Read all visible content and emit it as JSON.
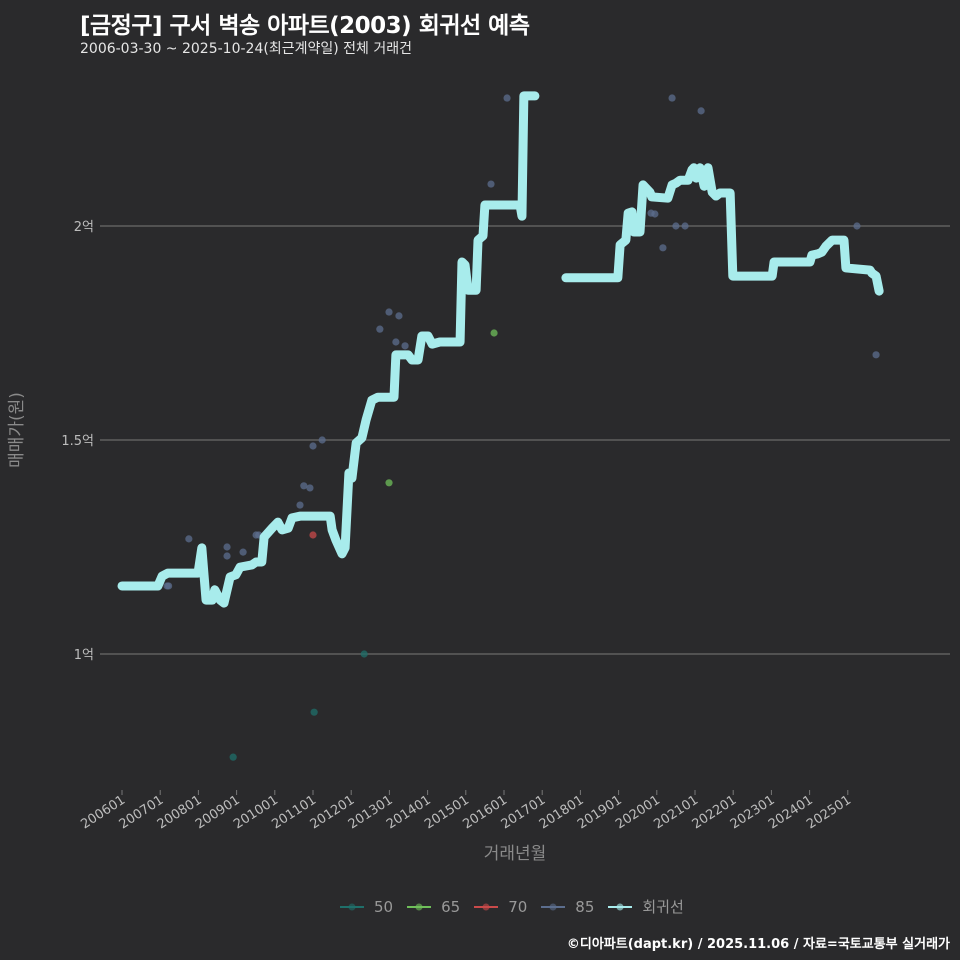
{
  "title": "[금정구] 구서 벽송 아파트(2003) 회귀선 예측",
  "subtitle": "2006-03-30 ~ 2025-10-24(최근계약일) 전체 거래건",
  "footer": "©디아파트(dapt.kr) / 2025.11.06 / 자료=국토교통부 실거래가",
  "chart_data": {
    "type": "line",
    "xlabel": "거래년월",
    "ylabel": "매매가(원)",
    "xlim": [
      2005.4,
      2026.9
    ],
    "ylim": [
      0.68,
      2.36
    ],
    "grid": "horizontal",
    "legend_position": "bottom",
    "y_ticks": [
      {
        "value": 1.0,
        "label": "1억"
      },
      {
        "value": 1.5,
        "label": "1.5억"
      },
      {
        "value": 2.0,
        "label": "2억"
      }
    ],
    "x_ticks": [
      {
        "value": 2006,
        "label": "200601"
      },
      {
        "value": 2007,
        "label": "200701"
      },
      {
        "value": 2008,
        "label": "200801"
      },
      {
        "value": 2009,
        "label": "200901"
      },
      {
        "value": 2010,
        "label": "201001"
      },
      {
        "value": 2011,
        "label": "201101"
      },
      {
        "value": 2012,
        "label": "201201"
      },
      {
        "value": 2013,
        "label": "201301"
      },
      {
        "value": 2014,
        "label": "201401"
      },
      {
        "value": 2015,
        "label": "201501"
      },
      {
        "value": 2016,
        "label": "201601"
      },
      {
        "value": 2017,
        "label": "201701"
      },
      {
        "value": 2018,
        "label": "201801"
      },
      {
        "value": 2019,
        "label": "201901"
      },
      {
        "value": 2020,
        "label": "202001"
      },
      {
        "value": 2021,
        "label": "202101"
      },
      {
        "value": 2022,
        "label": "202201"
      },
      {
        "value": 2023,
        "label": "202301"
      },
      {
        "value": 2024,
        "label": "202401"
      },
      {
        "value": 2025,
        "label": "202501"
      }
    ],
    "legend": [
      {
        "name": "50",
        "color": "#1f6f6a"
      },
      {
        "name": "65",
        "color": "#6fbf5a"
      },
      {
        "name": "70",
        "color": "#c94a4a"
      },
      {
        "name": "85",
        "color": "#5c6e8e"
      },
      {
        "name": "회귀선",
        "color": "#a8ecec"
      }
    ],
    "regression": [
      [
        [
          2006.0,
          1.159
        ],
        [
          2006.94,
          1.159
        ],
        [
          2007.05,
          1.182
        ],
        [
          2007.2,
          1.189
        ],
        [
          2007.99,
          1.189
        ],
        [
          2008.09,
          1.248
        ],
        [
          2008.2,
          1.126
        ],
        [
          2008.36,
          1.126
        ],
        [
          2008.43,
          1.15
        ],
        [
          2008.57,
          1.126
        ],
        [
          2008.67,
          1.119
        ],
        [
          2008.83,
          1.18
        ],
        [
          2008.98,
          1.185
        ],
        [
          2009.09,
          1.203
        ],
        [
          2009.4,
          1.208
        ],
        [
          2009.51,
          1.215
        ],
        [
          2009.66,
          1.215
        ],
        [
          2009.72,
          1.273
        ],
        [
          2009.93,
          1.294
        ],
        [
          2010.08,
          1.308
        ],
        [
          2010.19,
          1.29
        ],
        [
          2010.35,
          1.294
        ],
        [
          2010.45,
          1.318
        ],
        [
          2010.66,
          1.322
        ],
        [
          2011.45,
          1.322
        ],
        [
          2011.5,
          1.29
        ],
        [
          2011.6,
          1.266
        ],
        [
          2011.76,
          1.234
        ],
        [
          2011.84,
          1.248
        ],
        [
          2011.94,
          1.423
        ],
        [
          2012.02,
          1.411
        ],
        [
          2012.13,
          1.493
        ],
        [
          2012.28,
          1.505
        ],
        [
          2012.39,
          1.547
        ],
        [
          2012.54,
          1.593
        ],
        [
          2012.7,
          1.6
        ],
        [
          2013.12,
          1.6
        ],
        [
          2013.17,
          1.699
        ],
        [
          2013.49,
          1.699
        ],
        [
          2013.59,
          1.687
        ],
        [
          2013.75,
          1.687
        ],
        [
          2013.85,
          1.743
        ],
        [
          2014.01,
          1.743
        ],
        [
          2014.12,
          1.724
        ],
        [
          2014.32,
          1.729
        ],
        [
          2014.85,
          1.729
        ],
        [
          2014.9,
          1.916
        ],
        [
          2014.98,
          1.909
        ],
        [
          2015.06,
          1.85
        ],
        [
          2015.27,
          1.85
        ],
        [
          2015.32,
          1.967
        ],
        [
          2015.45,
          1.977
        ],
        [
          2015.5,
          2.049
        ],
        [
          2016.42,
          2.049
        ],
        [
          2016.47,
          2.023
        ],
        [
          2016.52,
          2.304
        ],
        [
          2016.81,
          2.304
        ]
      ],
      [
        [
          2017.62,
          1.879
        ],
        [
          2018.98,
          1.879
        ],
        [
          2019.04,
          1.956
        ],
        [
          2019.19,
          1.967
        ],
        [
          2019.25,
          2.03
        ],
        [
          2019.35,
          2.033
        ],
        [
          2019.4,
          1.986
        ],
        [
          2019.56,
          1.986
        ],
        [
          2019.64,
          2.096
        ],
        [
          2019.82,
          2.079
        ],
        [
          2019.87,
          2.068
        ],
        [
          2020.29,
          2.065
        ],
        [
          2020.4,
          2.096
        ],
        [
          2020.5,
          2.1
        ],
        [
          2020.61,
          2.107
        ],
        [
          2020.82,
          2.107
        ],
        [
          2020.92,
          2.131
        ],
        [
          2020.97,
          2.136
        ],
        [
          2021.03,
          2.112
        ],
        [
          2021.13,
          2.136
        ],
        [
          2021.24,
          2.093
        ],
        [
          2021.34,
          2.136
        ],
        [
          2021.45,
          2.079
        ],
        [
          2021.55,
          2.07
        ],
        [
          2021.65,
          2.077
        ],
        [
          2021.92,
          2.077
        ],
        [
          2021.99,
          1.883
        ],
        [
          2023.02,
          1.883
        ],
        [
          2023.07,
          1.916
        ],
        [
          2024.01,
          1.916
        ],
        [
          2024.06,
          1.932
        ],
        [
          2024.22,
          1.935
        ],
        [
          2024.32,
          1.939
        ],
        [
          2024.43,
          1.953
        ],
        [
          2024.59,
          1.967
        ],
        [
          2024.9,
          1.967
        ],
        [
          2024.95,
          1.902
        ],
        [
          2025.58,
          1.897
        ],
        [
          2025.63,
          1.89
        ],
        [
          2025.74,
          1.883
        ],
        [
          2025.82,
          1.848
        ]
      ]
    ],
    "points": {
      "50": [
        [
          2012.34,
          1.0
        ],
        [
          2011.03,
          0.864
        ],
        [
          2008.91,
          0.759
        ]
      ],
      "65": [
        [
          2012.99,
          1.4
        ],
        [
          2015.74,
          1.75
        ]
      ],
      "70": [
        [
          2011.0,
          1.278
        ]
      ],
      "85": [
        [
          2007.18,
          1.159
        ],
        [
          2007.22,
          1.159
        ],
        [
          2007.75,
          1.269
        ],
        [
          2008.75,
          1.25
        ],
        [
          2008.75,
          1.229
        ],
        [
          2009.17,
          1.238
        ],
        [
          2009.51,
          1.278
        ],
        [
          2009.58,
          1.278
        ],
        [
          2010.66,
          1.348
        ],
        [
          2010.76,
          1.393
        ],
        [
          2010.92,
          1.388
        ],
        [
          2011.0,
          1.486
        ],
        [
          2011.24,
          1.5
        ],
        [
          2012.75,
          1.759
        ],
        [
          2012.99,
          1.799
        ],
        [
          2013.17,
          1.729
        ],
        [
          2013.25,
          1.79
        ],
        [
          2013.41,
          1.72
        ],
        [
          2015.66,
          2.098
        ],
        [
          2016.08,
          2.299
        ],
        [
          2019.85,
          2.03
        ],
        [
          2019.95,
          2.028
        ],
        [
          2020.16,
          1.949
        ],
        [
          2020.4,
          2.299
        ],
        [
          2020.5,
          2.0
        ],
        [
          2020.74,
          2.0
        ],
        [
          2021.16,
          2.269
        ],
        [
          2025.24,
          2.0
        ],
        [
          2025.74,
          1.699
        ]
      ]
    }
  }
}
